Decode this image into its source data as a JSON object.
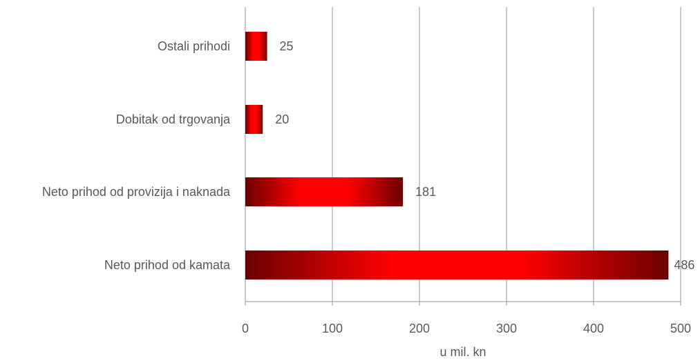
{
  "chart_data": {
    "type": "bar",
    "orientation": "horizontal",
    "categories": [
      "Neto prihod od kamata",
      "Neto prihod od provizija i naknada",
      "Dobitak od trgovanja",
      "Ostali prihodi"
    ],
    "values": [
      486,
      181,
      20,
      25
    ],
    "value_labels": [
      "486",
      "181",
      "20",
      "25"
    ],
    "xlabel": "u mil. kn",
    "xlim": [
      0,
      500
    ],
    "xticks": [
      "0",
      "100",
      "200",
      "300",
      "400",
      "500"
    ],
    "grid": "vertical",
    "legend": "none",
    "colors": {
      "bar_center": "#ff0000",
      "bar_edge": "#6b0000",
      "grid": "#a6a6a6",
      "text": "#595959"
    }
  }
}
